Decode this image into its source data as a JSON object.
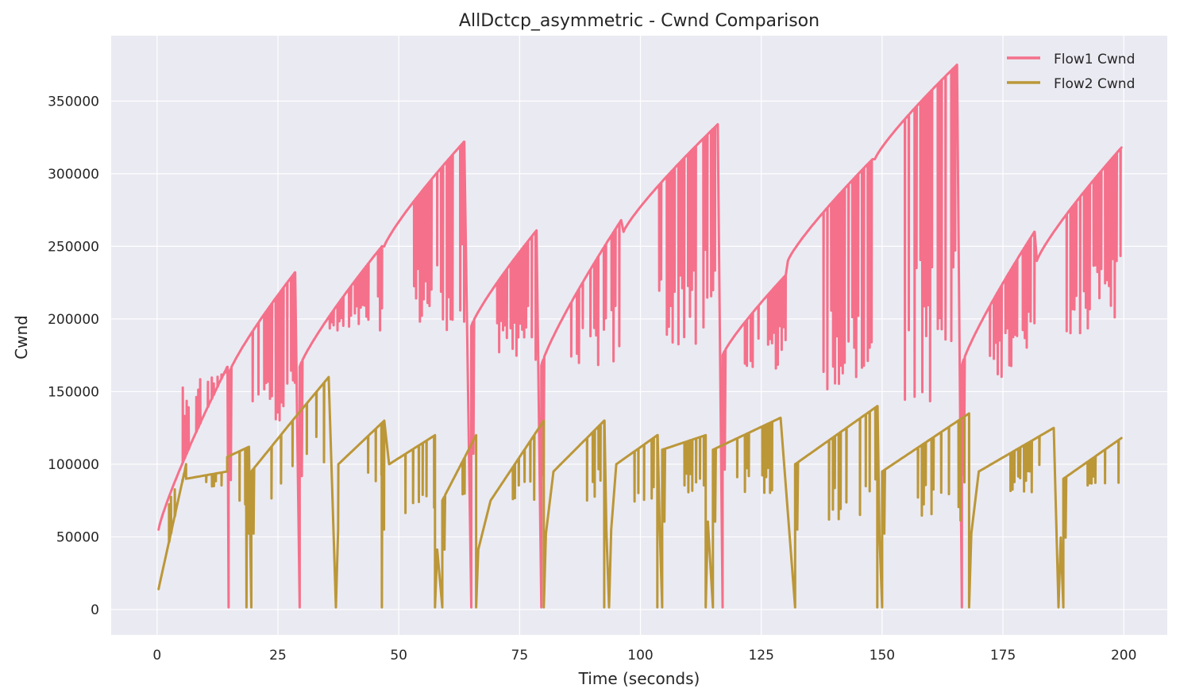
{
  "chart_data": {
    "type": "line",
    "title": "AllDctcp_asymmetric - Cwnd Comparison",
    "xlabel": "Time (seconds)",
    "ylabel": "Cwnd",
    "xlim": [
      -9.5,
      209
    ],
    "ylim": [
      -17500,
      395000
    ],
    "xticks": [
      0,
      25,
      50,
      75,
      100,
      125,
      150,
      175,
      200
    ],
    "yticks": [
      0,
      50000,
      100000,
      150000,
      200000,
      250000,
      300000,
      350000
    ],
    "grid": true,
    "legend_position": "top-right",
    "series": [
      {
        "name": "Flow1 Cwnd",
        "color": "#f5708a",
        "cycles": [
          {
            "t0": 0.3,
            "t1": 14.5,
            "y0": 55000,
            "y1": 167000,
            "dip": 162000
          },
          {
            "t0": 14.8,
            "t1": 28.5,
            "y0": 162000,
            "y1": 232000,
            "dip": 130000
          },
          {
            "t0": 29.5,
            "t1": 46.5,
            "y0": 167000,
            "y1": 250000,
            "dip": 192000
          },
          {
            "t0": 47.0,
            "t1": 63.5,
            "y0": 250000,
            "y1": 322000,
            "dip": 192000
          },
          {
            "t0": 65.0,
            "t1": 78.5,
            "y0": 195000,
            "y1": 261000,
            "dip": 170000
          },
          {
            "t0": 79.5,
            "t1": 96.0,
            "y0": 168000,
            "y1": 268000,
            "dip": 165000
          },
          {
            "t0": 96.5,
            "t1": 116.0,
            "y0": 260000,
            "y1": 334000,
            "dip": 180000
          },
          {
            "t0": 117.0,
            "t1": 130.0,
            "y0": 175000,
            "y1": 230000,
            "dip": 165000
          },
          {
            "t0": 130.5,
            "t1": 148.0,
            "y0": 240000,
            "y1": 310000,
            "dip": 150000
          },
          {
            "t0": 148.5,
            "t1": 165.5,
            "y0": 310000,
            "y1": 375000,
            "dip": 140000
          },
          {
            "t0": 166.5,
            "t1": 181.5,
            "y0": 168000,
            "y1": 260000,
            "dip": 160000
          },
          {
            "t0": 182.0,
            "t1": 199.5,
            "y0": 240000,
            "y1": 318000,
            "dip": 190000
          }
        ],
        "drops_to_zero": [
          14.8,
          29.5,
          65.0,
          79.5,
          117.0,
          166.5
        ]
      },
      {
        "name": "Flow2 Cwnd",
        "color": "#bb9738",
        "cycles": [
          {
            "t0": 0.3,
            "t1": 6.0,
            "y0": 14000,
            "y1": 100000,
            "dip": 90000
          },
          {
            "t0": 6.0,
            "t1": 14.5,
            "y0": 90000,
            "y1": 95000,
            "dip": 84000
          },
          {
            "t0": 14.5,
            "t1": 19.0,
            "y0": 105000,
            "y1": 112000,
            "dip": 70000
          },
          {
            "t0": 19.5,
            "t1": 28.0,
            "y0": 95000,
            "y1": 130000,
            "dip": 70000
          },
          {
            "t0": 28.0,
            "t1": 35.5,
            "y0": 130000,
            "y1": 160000,
            "dip": 90000
          },
          {
            "t0": 37.5,
            "t1": 47.0,
            "y0": 100000,
            "y1": 130000,
            "dip": 70000
          },
          {
            "t0": 48.0,
            "t1": 57.5,
            "y0": 100000,
            "y1": 120000,
            "dip": 60000
          },
          {
            "t0": 59.0,
            "t1": 66.0,
            "y0": 75000,
            "y1": 120000,
            "dip": 60000
          },
          {
            "t0": 69.0,
            "t1": 80.0,
            "y0": 75000,
            "y1": 130000,
            "dip": 75000
          },
          {
            "t0": 82.0,
            "t1": 92.5,
            "y0": 95000,
            "y1": 130000,
            "dip": 75000
          },
          {
            "t0": 95.0,
            "t1": 103.5,
            "y0": 100000,
            "y1": 120000,
            "dip": 70000
          },
          {
            "t0": 104.5,
            "t1": 113.5,
            "y0": 110000,
            "y1": 120000,
            "dip": 75000
          },
          {
            "t0": 115.0,
            "t1": 129.0,
            "y0": 110000,
            "y1": 132000,
            "dip": 80000
          },
          {
            "t0": 132.0,
            "t1": 149.0,
            "y0": 100000,
            "y1": 140000,
            "dip": 60000
          },
          {
            "t0": 150.0,
            "t1": 168.0,
            "y0": 95000,
            "y1": 135000,
            "dip": 60000
          },
          {
            "t0": 170.0,
            "t1": 185.5,
            "y0": 95000,
            "y1": 125000,
            "dip": 80000
          },
          {
            "t0": 187.5,
            "t1": 199.5,
            "y0": 90000,
            "y1": 118000,
            "dip": 80000
          }
        ],
        "drops_to_zero": [
          18.5,
          19.5,
          37.0,
          38.5,
          46.5,
          49.5,
          57.5,
          59.0,
          66.0,
          80.0,
          92.5,
          93.5,
          103.5,
          104.5,
          113.5,
          115.0,
          119.0,
          127.0,
          132.0,
          149.0,
          150.0,
          155.5,
          158.5,
          166.5,
          168.0,
          177.5,
          178.5,
          186.5,
          187.5,
          194.5,
          195.5
        ]
      }
    ]
  }
}
